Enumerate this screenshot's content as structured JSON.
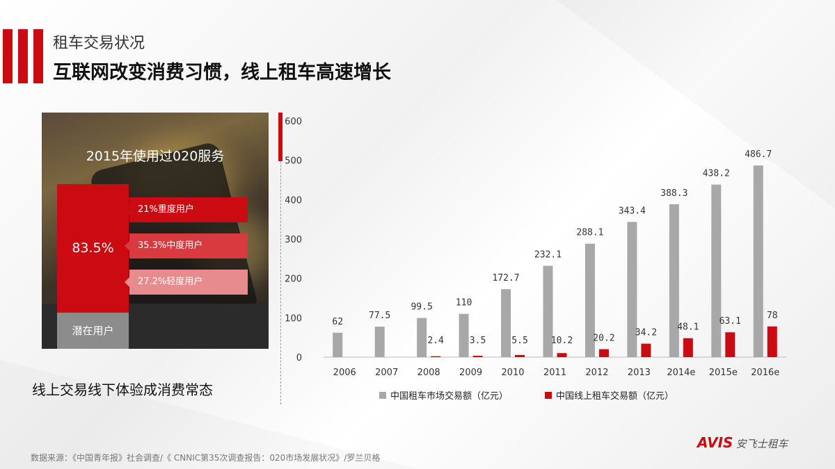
{
  "header": {
    "subtitle": "租车交易状况",
    "title": "互联网改变消费习惯，线上租车高速增长"
  },
  "o2o_panel": {
    "heading": "2015年使用过020服务",
    "total_pct": "83.5%",
    "segments": [
      {
        "label": "21%重度用户",
        "value": 21
      },
      {
        "label": "35.3%中度用户",
        "value": 35.3
      },
      {
        "label": "27.2%轻度用户",
        "value": 27.2
      }
    ],
    "potential_label": "潜在用户"
  },
  "slogan": "线上交易线下体验成消费常态",
  "source": "数据来源：《中国青年报》社会调查/《 CNNIC第35次调查报告：020市场发展状况》/罗兰贝格",
  "logo": {
    "brand": "AVIS",
    "cn": "安飞士租车"
  },
  "colors": {
    "accent": "#cc0a12",
    "grey_bar": "#a8a8a8"
  },
  "chart_data": {
    "type": "bar",
    "categories": [
      "2006",
      "2007",
      "2008",
      "2009",
      "2010",
      "2011",
      "2012",
      "2013",
      "2014e",
      "2015e",
      "2016e"
    ],
    "series": [
      {
        "name": "中国租车市场交易额（亿元）",
        "color": "#a8a8a8",
        "values": [
          62,
          77.5,
          99.5,
          110,
          172.7,
          232.1,
          288.1,
          343.4,
          388.3,
          438.2,
          486.7
        ],
        "labels": [
          "62",
          "77.5",
          "99.5",
          "110",
          "172.7",
          "232.1",
          "288.1",
          "343.4",
          "388.3",
          "438.2",
          "486.7"
        ]
      },
      {
        "name": "中国线上租车交易额（亿元）",
        "color": "#cc0a12",
        "values": [
          null,
          null,
          2.4,
          3.5,
          5.5,
          10.2,
          20.2,
          34.2,
          48.1,
          63.1,
          78
        ],
        "labels": [
          "",
          "",
          "2.4",
          "3.5",
          "5.5",
          "10.2",
          "20.2",
          "34.2",
          "48.1",
          "63.1",
          "78"
        ]
      }
    ],
    "yticks": [
      "0",
      "100",
      "200",
      "300",
      "400",
      "500",
      "600"
    ],
    "ylim": [
      0,
      600
    ],
    "legend_position": "bottom"
  }
}
